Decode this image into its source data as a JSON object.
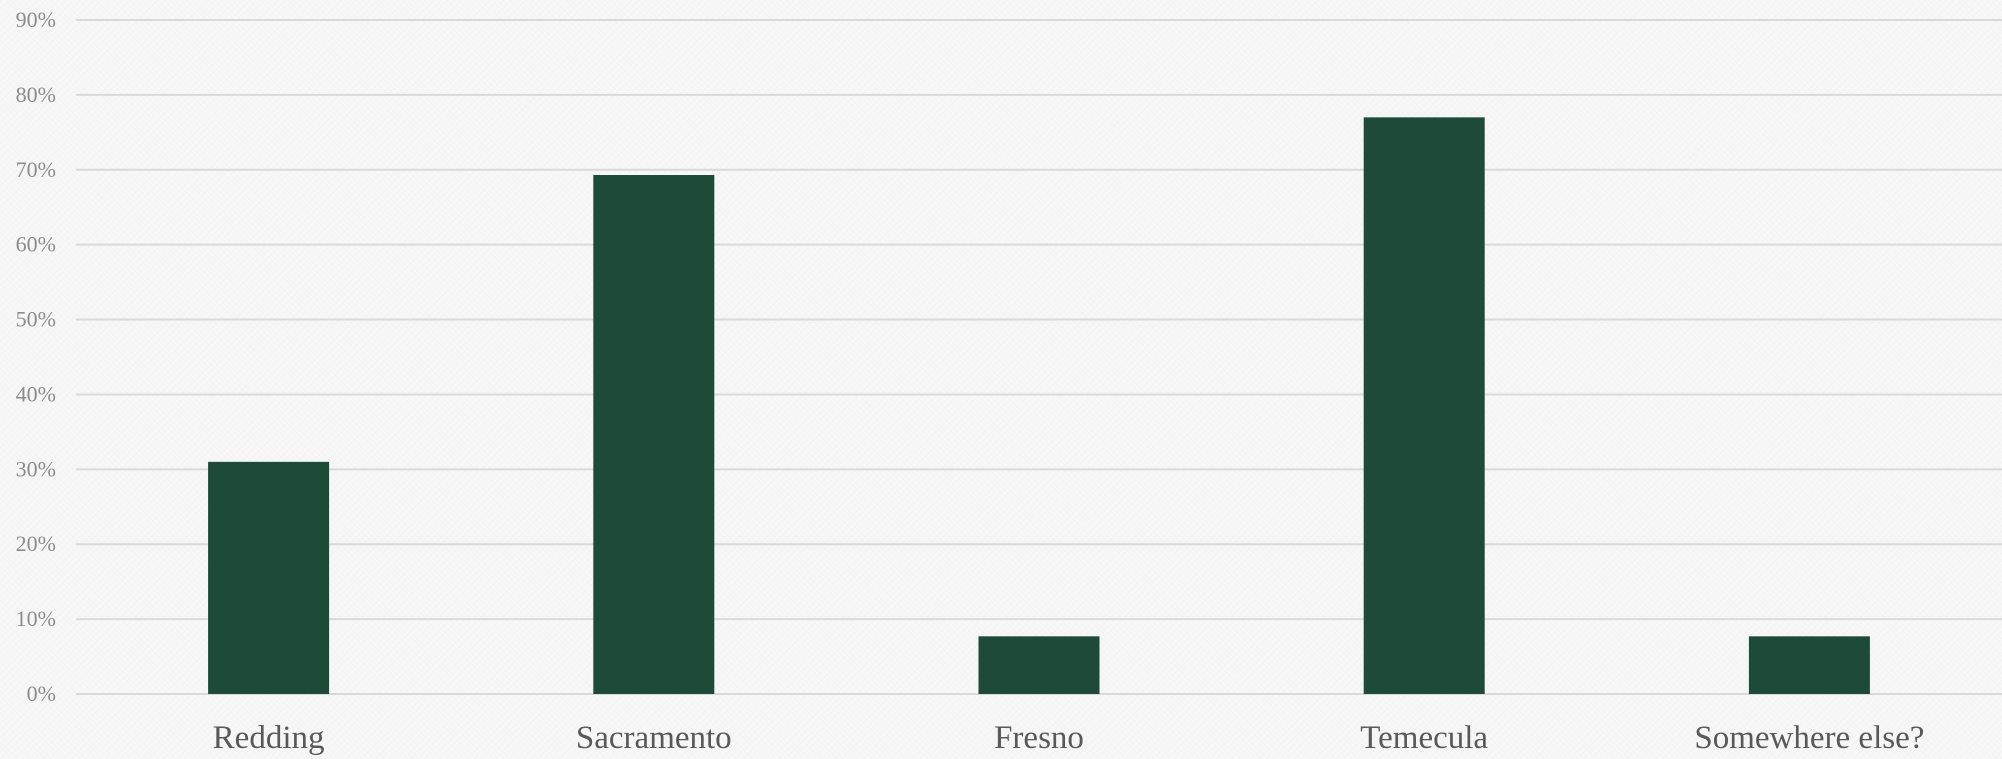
{
  "chart_data": {
    "type": "bar",
    "categories": [
      "Redding",
      "Sacramento",
      "Fresno",
      "Temecula",
      "Somewhere else?"
    ],
    "series": [
      {
        "values": [
          31,
          69.3,
          7.7,
          77,
          7.7
        ]
      }
    ],
    "ylim": [
      0,
      90
    ],
    "yticks": [
      "0%",
      "10%",
      "20%",
      "30%",
      "40%",
      "50%",
      "60%",
      "70%",
      "80%",
      "90%"
    ],
    "grid": true,
    "legend": "none",
    "bar_color": "#1e4a39"
  }
}
